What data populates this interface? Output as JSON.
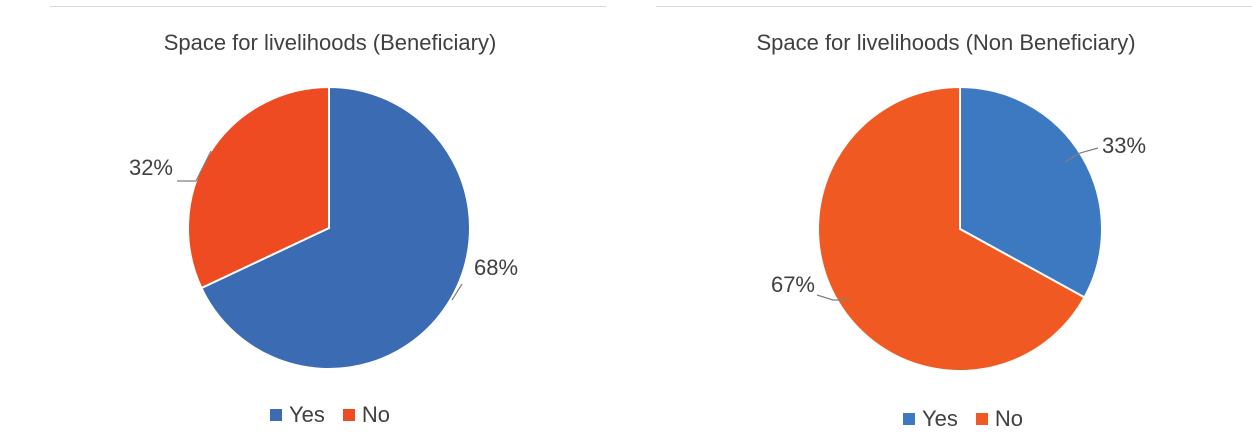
{
  "chart_data": [
    {
      "type": "pie",
      "title": "Space for livelihoods (Beneficiary)",
      "categories": [
        "Yes",
        "No"
      ],
      "values": [
        68,
        32
      ],
      "data_labels": [
        "68%",
        "32%"
      ],
      "colors": [
        "#3a6bb3",
        "#ee4b22"
      ],
      "legend": "bottom",
      "legend_entries": [
        "Yes",
        "No"
      ]
    },
    {
      "type": "pie",
      "title": "Space for livelihoods (Non Beneficiary)",
      "categories": [
        "Yes",
        "No"
      ],
      "values": [
        33,
        67
      ],
      "data_labels": [
        "33%",
        "67%"
      ],
      "colors": [
        "#3d79c0",
        "#f05a22"
      ],
      "legend": "bottom",
      "legend_entries": [
        "Yes",
        "No"
      ]
    }
  ]
}
